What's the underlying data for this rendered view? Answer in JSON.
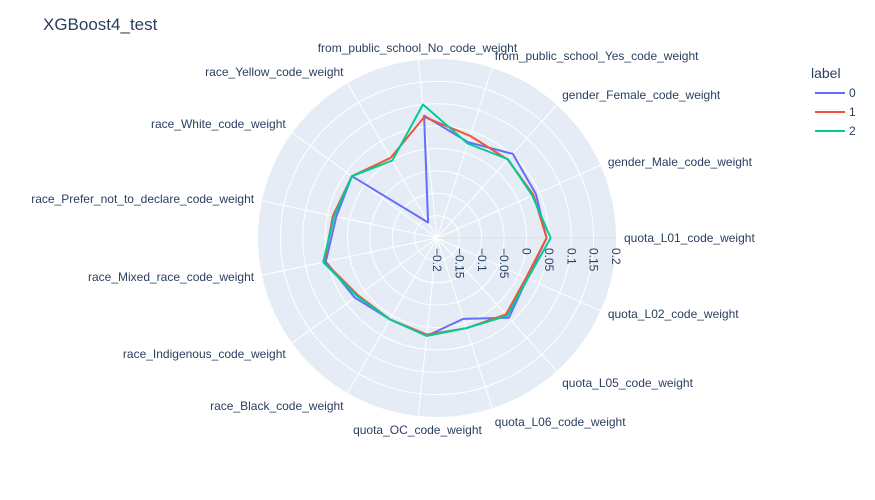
{
  "chart_data": {
    "type": "radar",
    "title": "XGBoost4_test",
    "radial_range": [
      -0.2,
      0.2
    ],
    "radial_ticks": [
      "−0.2",
      "−0.15",
      "−0.1",
      "−0.05",
      "0",
      "0.05",
      "0.1",
      "0.15",
      "0.2"
    ],
    "radial_tick_values": [
      -0.2,
      -0.15,
      -0.1,
      -0.05,
      0,
      0.05,
      0.1,
      0.15,
      0.2
    ],
    "theta": [
      "quota_L01_code_weight",
      "gender_Male_code_weight",
      "gender_Female_code_weight",
      "from_public_school_Yes_code_weight",
      "from_public_school_No_code_weight",
      "race_Yellow_code_weight",
      "race_White_code_weight",
      "race_Prefer_not_to_declare_code_weight",
      "race_Mixed_race_code_weight",
      "race_Indigenous_code_weight",
      "race_Black_code_weight",
      "quota_OC_code_weight",
      "quota_L06_code_weight",
      "quota_L05_code_weight",
      "quota_L02_code_weight"
    ],
    "series": [
      {
        "name": "0",
        "color": "#636efa",
        "values": [
          0.045,
          0.042,
          0.053,
          0.025,
          0.075,
          -0.16,
          0.035,
          0.03,
          0.054,
          0.027,
          0.01,
          0.02,
          -0.01,
          0.04,
          0.021
        ]
      },
      {
        "name": "1",
        "color": "#EF553B",
        "values": [
          0.045,
          0.036,
          0.036,
          0.04,
          0.072,
          0.007,
          0.035,
          0.038,
          0.057,
          0.018,
          0.01,
          0.017,
          0.012,
          0.03,
          0.018
        ]
      },
      {
        "name": "2",
        "color": "#00cc96",
        "values": [
          0.054,
          0.033,
          0.037,
          0.022,
          0.1,
          0.0,
          0.035,
          0.035,
          0.06,
          0.021,
          0.01,
          0.02,
          0.012,
          0.034,
          0.022
        ]
      }
    ],
    "legend": {
      "title": "label",
      "placement": "top-right"
    },
    "polar_bgcolor": "#e5ecf6",
    "grid_color": "#ffffff"
  }
}
